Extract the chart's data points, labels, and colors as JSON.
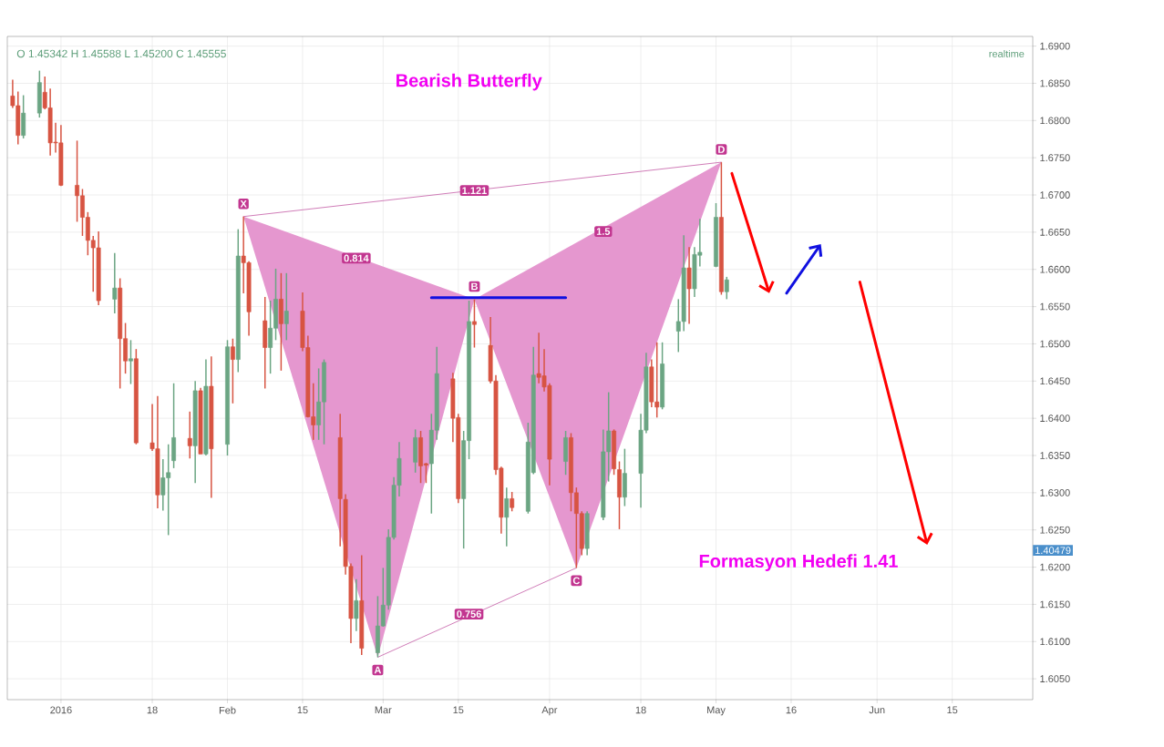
{
  "chart_data": {
    "type": "candlestick",
    "title": "Bearish Butterfly",
    "x": [
      "2015-12-23",
      "2015-12-24",
      "2015-12-25",
      "2015-12-28",
      "2015-12-29",
      "2015-12-30",
      "2015-12-31",
      "2016-01-01",
      "2016-01-04",
      "2016-01-05",
      "2016-01-06",
      "2016-01-07",
      "2016-01-08",
      "2016-01-11",
      "2016-01-12",
      "2016-01-13",
      "2016-01-14",
      "2016-01-15",
      "2016-01-18",
      "2016-01-19",
      "2016-01-20",
      "2016-01-21",
      "2016-01-22",
      "2016-01-25",
      "2016-01-26",
      "2016-01-27",
      "2016-01-28",
      "2016-01-29",
      "2016-02-01",
      "2016-02-02",
      "2016-02-03",
      "2016-02-04",
      "2016-02-05",
      "2016-02-08",
      "2016-02-09",
      "2016-02-10",
      "2016-02-11",
      "2016-02-12",
      "2016-02-15",
      "2016-02-16",
      "2016-02-17",
      "2016-02-18",
      "2016-02-19",
      "2016-02-22",
      "2016-02-23",
      "2016-02-24",
      "2016-02-25",
      "2016-02-26",
      "2016-02-29",
      "2016-03-01",
      "2016-03-02",
      "2016-03-03",
      "2016-03-04",
      "2016-03-07",
      "2016-03-08",
      "2016-03-09",
      "2016-03-10",
      "2016-03-11",
      "2016-03-14",
      "2016-03-15",
      "2016-03-16",
      "2016-03-17",
      "2016-03-18",
      "2016-03-21",
      "2016-03-22",
      "2016-03-23",
      "2016-03-24",
      "2016-03-25",
      "2016-03-28",
      "2016-03-29",
      "2016-03-30",
      "2016-03-31",
      "2016-04-01",
      "2016-04-04",
      "2016-04-05",
      "2016-04-06",
      "2016-04-07",
      "2016-04-08",
      "2016-04-11",
      "2016-04-12",
      "2016-04-13",
      "2016-04-14",
      "2016-04-15",
      "2016-04-18",
      "2016-04-19",
      "2016-04-20",
      "2016-04-21",
      "2016-04-22",
      "2016-04-25",
      "2016-04-26",
      "2016-04-27",
      "2016-04-28",
      "2016-04-29",
      "2016-05-02",
      "2016-05-03",
      "2016-05-04"
    ],
    "ohlc": [
      [
        1.6833,
        1.6855,
        1.6817,
        1.682
      ],
      [
        1.682,
        1.6839,
        1.6768,
        1.678
      ],
      [
        1.678,
        1.6834,
        1.6776,
        1.681
      ],
      [
        1.681,
        1.6867,
        1.6804,
        1.6851
      ],
      [
        1.6838,
        1.6859,
        1.6815,
        1.6817
      ],
      [
        1.6817,
        1.6843,
        1.6753,
        1.677
      ],
      [
        1.6771,
        1.6797,
        1.6757,
        1.677
      ],
      [
        1.677,
        1.6794,
        1.6712,
        1.6713
      ],
      [
        1.6713,
        1.6773,
        1.6664,
        1.6699
      ],
      [
        1.6699,
        1.6708,
        1.6645,
        1.667
      ],
      [
        1.667,
        1.6677,
        1.6619,
        1.6639
      ],
      [
        1.6639,
        1.6645,
        1.657,
        1.6629
      ],
      [
        1.6629,
        1.6651,
        1.6552,
        1.6558
      ],
      [
        1.656,
        1.6622,
        1.6541,
        1.6575
      ],
      [
        1.6575,
        1.6588,
        1.644,
        1.6507
      ],
      [
        1.6507,
        1.6528,
        1.646,
        1.6477
      ],
      [
        1.6477,
        1.6505,
        1.6446,
        1.648
      ],
      [
        1.648,
        1.6493,
        1.6365,
        1.6367
      ],
      [
        1.6367,
        1.6419,
        1.6356,
        1.6359
      ],
      [
        1.6359,
        1.643,
        1.6279,
        1.6297
      ],
      [
        1.6297,
        1.6345,
        1.6276,
        1.632
      ],
      [
        1.632,
        1.6365,
        1.6243,
        1.6327
      ],
      [
        1.6343,
        1.6447,
        1.6333,
        1.6374
      ],
      [
        1.6373,
        1.6409,
        1.6346,
        1.6363
      ],
      [
        1.6363,
        1.645,
        1.6313,
        1.6437
      ],
      [
        1.6437,
        1.6441,
        1.6352,
        1.6352
      ],
      [
        1.6352,
        1.6479,
        1.635,
        1.6443
      ],
      [
        1.6443,
        1.6483,
        1.6293,
        1.6359
      ],
      [
        1.6365,
        1.6505,
        1.635,
        1.6496
      ],
      [
        1.6496,
        1.6507,
        1.642,
        1.6479
      ],
      [
        1.6479,
        1.6654,
        1.6462,
        1.6618
      ],
      [
        1.6618,
        1.6671,
        1.6568,
        1.6609
      ],
      [
        1.6609,
        1.6611,
        1.6511,
        1.6543
      ],
      [
        1.6531,
        1.6563,
        1.644,
        1.6495
      ],
      [
        1.6495,
        1.6558,
        1.646,
        1.6521
      ],
      [
        1.6521,
        1.6601,
        1.6505,
        1.656
      ],
      [
        1.656,
        1.6595,
        1.6464,
        1.6527
      ],
      [
        1.6527,
        1.6595,
        1.6505,
        1.6544
      ],
      [
        1.6544,
        1.6569,
        1.649,
        1.6495
      ],
      [
        1.6495,
        1.6511,
        1.6401,
        1.6402
      ],
      [
        1.6402,
        1.6447,
        1.6371,
        1.6391
      ],
      [
        1.6391,
        1.6467,
        1.6371,
        1.6422
      ],
      [
        1.6422,
        1.6479,
        1.6365,
        1.6475
      ],
      [
        1.6374,
        1.6406,
        1.6228,
        1.6292
      ],
      [
        1.6291,
        1.6298,
        1.619,
        1.6201
      ],
      [
        1.6201,
        1.6205,
        1.6098,
        1.6131
      ],
      [
        1.6131,
        1.6184,
        1.6114,
        1.6155
      ],
      [
        1.6155,
        1.6216,
        1.6082,
        1.6091
      ],
      [
        1.6085,
        1.6161,
        1.6079,
        1.6121
      ],
      [
        1.6121,
        1.6199,
        1.612,
        1.6149
      ],
      [
        1.6149,
        1.6251,
        1.6143,
        1.624
      ],
      [
        1.624,
        1.6321,
        1.6237,
        1.631
      ],
      [
        1.631,
        1.6368,
        1.6295,
        1.6346
      ],
      [
        1.6341,
        1.6385,
        1.6327,
        1.6374
      ],
      [
        1.6374,
        1.6383,
        1.6313,
        1.6336
      ],
      [
        1.6339,
        1.634,
        1.6313,
        1.6337
      ],
      [
        1.6339,
        1.6406,
        1.6272,
        1.6384
      ],
      [
        1.6384,
        1.6496,
        1.6371,
        1.646
      ],
      [
        1.6453,
        1.6461,
        1.6368,
        1.64
      ],
      [
        1.6401,
        1.6406,
        1.6286,
        1.6292
      ],
      [
        1.6292,
        1.6383,
        1.6225,
        1.637
      ],
      [
        1.637,
        1.6558,
        1.6345,
        1.653
      ],
      [
        1.653,
        1.656,
        1.6495,
        1.6526
      ],
      [
        1.6498,
        1.6536,
        1.6447,
        1.645
      ],
      [
        1.645,
        1.6458,
        1.6324,
        1.6331
      ],
      [
        1.6333,
        1.6335,
        1.6245,
        1.6267
      ],
      [
        1.6267,
        1.6307,
        1.6228,
        1.6292
      ],
      [
        1.6292,
        1.6301,
        1.6275,
        1.628
      ],
      [
        1.6275,
        1.6394,
        1.6272,
        1.6368
      ],
      [
        1.6327,
        1.6496,
        1.6325,
        1.6458
      ],
      [
        1.646,
        1.6515,
        1.6447,
        1.6455
      ],
      [
        1.6457,
        1.6493,
        1.6436,
        1.6442
      ],
      [
        1.6444,
        1.6447,
        1.631,
        1.6345
      ],
      [
        1.6342,
        1.6383,
        1.6324,
        1.6374
      ],
      [
        1.6374,
        1.638,
        1.6275,
        1.63
      ],
      [
        1.63,
        1.6307,
        1.6199,
        1.6272
      ],
      [
        1.6272,
        1.6275,
        1.6216,
        1.6225
      ],
      [
        1.6225,
        1.6275,
        1.6216,
        1.6272
      ],
      [
        1.6267,
        1.6385,
        1.6263,
        1.6355
      ],
      [
        1.6355,
        1.6435,
        1.6315,
        1.6383
      ],
      [
        1.6383,
        1.6385,
        1.6324,
        1.6332
      ],
      [
        1.6331,
        1.6342,
        1.6251,
        1.6294
      ],
      [
        1.6294,
        1.6359,
        1.6282,
        1.6326
      ],
      [
        1.6326,
        1.6406,
        1.628,
        1.6384
      ],
      [
        1.6384,
        1.6488,
        1.638,
        1.6469
      ],
      [
        1.6469,
        1.6479,
        1.6415,
        1.6422
      ],
      [
        1.6422,
        1.6502,
        1.6401,
        1.6415
      ],
      [
        1.6415,
        1.6502,
        1.6412,
        1.6473
      ],
      [
        1.6517,
        1.656,
        1.6489,
        1.653
      ],
      [
        1.653,
        1.6646,
        1.6517,
        1.6602
      ],
      [
        1.6602,
        1.663,
        1.6527,
        1.6574
      ],
      [
        1.6574,
        1.663,
        1.6563,
        1.662
      ],
      [
        1.6619,
        1.6668,
        1.6604,
        1.6623
      ],
      [
        1.6604,
        1.6689,
        1.6603,
        1.667
      ],
      [
        1.667,
        1.6744,
        1.6566,
        1.657
      ],
      [
        1.657,
        1.659,
        1.656,
        1.6586
      ]
    ],
    "colors": [
      "#d75442",
      "#d75442",
      "#6ba583",
      "#6ba583",
      "#d75442",
      "#d75442",
      "#d75442",
      "#d75442",
      "#d75442",
      "#d75442",
      "#d75442",
      "#d75442",
      "#d75442",
      "#6ba583",
      "#d75442",
      "#d75442",
      "#6ba583",
      "#d75442",
      "#d75442",
      "#d75442",
      "#6ba583",
      "#6ba583",
      "#6ba583",
      "#d75442",
      "#6ba583",
      "#d75442",
      "#6ba583",
      "#d75442",
      "#6ba583",
      "#d75442",
      "#6ba583",
      "#d75442",
      "#d75442",
      "#d75442",
      "#6ba583",
      "#6ba583",
      "#d75442",
      "#6ba583",
      "#d75442",
      "#d75442",
      "#d75442",
      "#6ba583",
      "#6ba583",
      "#d75442",
      "#d75442",
      "#d75442",
      "#6ba583",
      "#d75442",
      "#6ba583",
      "#6ba583",
      "#6ba583",
      "#6ba583",
      "#6ba583",
      "#6ba583",
      "#d75442",
      "#d75442",
      "#6ba583",
      "#6ba583",
      "#d75442",
      "#d75442",
      "#6ba583",
      "#6ba583",
      "#d75442",
      "#d75442",
      "#d75442",
      "#d75442",
      "#6ba583",
      "#d75442",
      "#6ba583",
      "#6ba583",
      "#d75442",
      "#d75442",
      "#d75442",
      "#6ba583",
      "#d75442",
      "#d75442",
      "#d75442",
      "#6ba583",
      "#6ba583",
      "#6ba583",
      "#d75442",
      "#d75442",
      "#6ba583",
      "#6ba583",
      "#6ba583",
      "#d75442",
      "#d75442",
      "#6ba583",
      "#6ba583",
      "#6ba583",
      "#d75442",
      "#6ba583",
      "#6ba583",
      "#6ba583",
      "#d75442",
      "#6ba583"
    ],
    "series": [
      {
        "type": "area",
        "color": "#e597cf",
        "x": [
          "2016-02-04",
          "2016-02-29",
          "2016-03-18"
        ],
        "values": [
          1.6671,
          1.6079,
          1.656
        ]
      },
      {
        "type": "area",
        "color": "#e597cf",
        "x": [
          "2016-03-18",
          "2016-04-06",
          "2016-05-03"
        ],
        "values": [
          1.656,
          1.6199,
          1.6744
        ]
      },
      {
        "type": "line",
        "color": "#c45ca6",
        "x": [
          "2016-02-04",
          "2016-05-03"
        ],
        "values": [
          1.6671,
          1.6744
        ]
      },
      {
        "type": "line",
        "color": "#c45ca6",
        "x": [
          "2016-02-29",
          "2016-04-06"
        ],
        "values": [
          1.6079,
          1.6199
        ]
      },
      {
        "type": "line",
        "color": "#1010e0",
        "x": [
          "2016-03-10",
          "2016-04-04"
        ],
        "values": [
          1.6562,
          1.6562
        ]
      }
    ],
    "annotations": [
      "O 1.45342 H 1.45588 L 1.45200 C 1.45555",
      "realtime",
      "1.40479",
      "Formasyon Hedefi 1.41",
      {
        "text": "X",
        "x": "2016-02-04",
        "y": 1.6671
      },
      {
        "text": "A",
        "x": "2016-02-29",
        "y": 1.6079
      },
      {
        "text": "B",
        "x": "2016-03-18",
        "y": 1.656
      },
      {
        "text": "C",
        "x": "2016-04-06",
        "y": 1.6199
      },
      {
        "text": "D",
        "x": "2016-05-03",
        "y": 1.6744
      },
      {
        "text": "1.121",
        "x": "2016-03-18",
        "y": 1.6706
      },
      {
        "text": "0.814",
        "x": "2016-02-25",
        "y": 1.6615
      },
      {
        "text": "1.5",
        "x": "2016-04-11",
        "y": 1.6651
      },
      {
        "text": "0.756",
        "x": "2016-03-17",
        "y": 1.6137
      }
    ],
    "xlim": [
      "2015-12-22",
      "2016-06-30"
    ],
    "ylim": [
      1.6022,
      1.6913
    ],
    "xticks": [
      {
        "value": "2016-01-01",
        "label": "2016"
      },
      {
        "value": "2016-01-18",
        "label": "18"
      },
      {
        "value": "2016-02-01",
        "label": "Feb"
      },
      {
        "value": "2016-02-15",
        "label": "15"
      },
      {
        "value": "2016-03-01",
        "label": "Mar"
      },
      {
        "value": "2016-03-15",
        "label": "15"
      },
      {
        "value": "2016-04-01",
        "label": "Apr"
      },
      {
        "value": "2016-04-18",
        "label": "18"
      },
      {
        "value": "2016-05-02",
        "label": "May"
      },
      {
        "value": "2016-05-16",
        "label": "16"
      },
      {
        "value": "2016-06-01",
        "label": "Jun"
      },
      {
        "value": "2016-06-15",
        "label": "15"
      }
    ],
    "yticks": [
      {
        "value": 1.605,
        "label": "1.6050"
      },
      {
        "value": 1.61,
        "label": "1.6100"
      },
      {
        "value": 1.615,
        "label": "1.6150"
      },
      {
        "value": 1.62,
        "label": "1.6200"
      },
      {
        "value": 1.625,
        "label": "1.6250"
      },
      {
        "value": 1.63,
        "label": "1.6300"
      },
      {
        "value": 1.635,
        "label": "1.6350"
      },
      {
        "value": 1.64,
        "label": "1.6400"
      },
      {
        "value": 1.645,
        "label": "1.6450"
      },
      {
        "value": 1.65,
        "label": "1.6500"
      },
      {
        "value": 1.655,
        "label": "1.6550"
      },
      {
        "value": 1.66,
        "label": "1.6600"
      },
      {
        "value": 1.665,
        "label": "1.6650"
      },
      {
        "value": 1.67,
        "label": "1.6700"
      },
      {
        "value": 1.675,
        "label": "1.6750"
      },
      {
        "value": 1.68,
        "label": "1.6800"
      },
      {
        "value": 1.685,
        "label": "1.6850"
      },
      {
        "value": 1.69,
        "label": "1.6900"
      }
    ],
    "grid": true
  }
}
